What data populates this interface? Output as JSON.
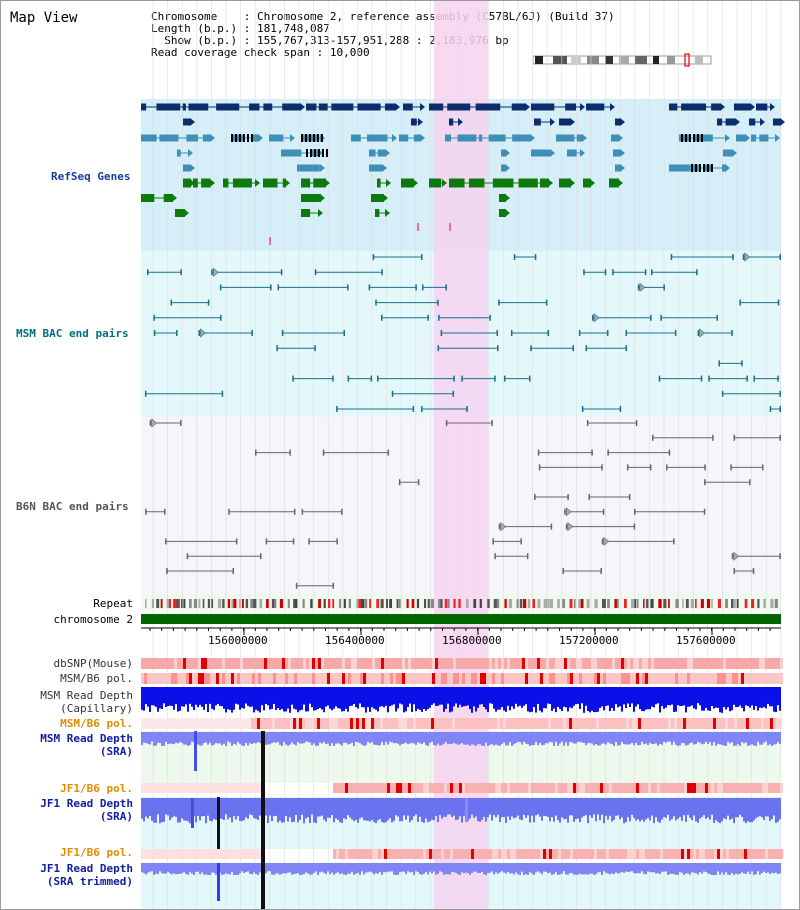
{
  "title": "Map View",
  "info": {
    "chromosome_label": "Chromosome",
    "chromosome_value": "Chromosome 2, reference assembly (C57BL/6J) (Build 37)",
    "length_label": "Length (b.p.)",
    "length_value": "181,748,087",
    "show_label": "Show (b.p.)",
    "show_value": "155,767,313-157,951,288 : 2,183,976 bp",
    "coverage_label": "Read coverage check span",
    "coverage_value": "10,000"
  },
  "tracks": {
    "refseq": "RefSeq Genes",
    "msm_bac": "MSM BAC end pairs",
    "b6n_bac": "B6N BAC end pairs",
    "repeat": "Repeat",
    "chromosome": "chromosome 2",
    "dbsnp": "dbSNP(Mouse)",
    "msm_pol": "MSM/B6 pol.",
    "msm_depth_cap_1": "MSM Read Depth",
    "msm_depth_cap_2": "(Capillary)",
    "msm_pol_2": "MSM/B6 pol.",
    "msm_depth_sra_1": "MSM Read Depth",
    "msm_depth_sra_2": "(SRA)",
    "jf1_pol": "JF1/B6 pol.",
    "jf1_depth_1": "JF1 Read Depth",
    "jf1_depth_2": "(SRA)",
    "jf1_pol_2": "JF1/B6 pol.",
    "jf1_trim_1": "JF1 Read Depth",
    "jf1_trim_2": "(SRA trimmed)"
  },
  "axis": {
    "ticks": [
      "156000000",
      "156400000",
      "156800000",
      "157200000",
      "157600000"
    ]
  },
  "colors": {
    "refseq_bg": "#d6eef8",
    "msm_bac_bg": "#e4f8fb",
    "b6n_bac_bg": "#f6f6fa",
    "highlight": "#f6d4f0",
    "gene_dark": "#0c2d6b",
    "gene_mid": "#3f8fb6",
    "gene_green": "#0e7a0e",
    "msm_label": "#006f80",
    "refseq_label": "#1a3c9a",
    "sra_label": "#1020a0",
    "pol_label": "#e08c00"
  }
}
